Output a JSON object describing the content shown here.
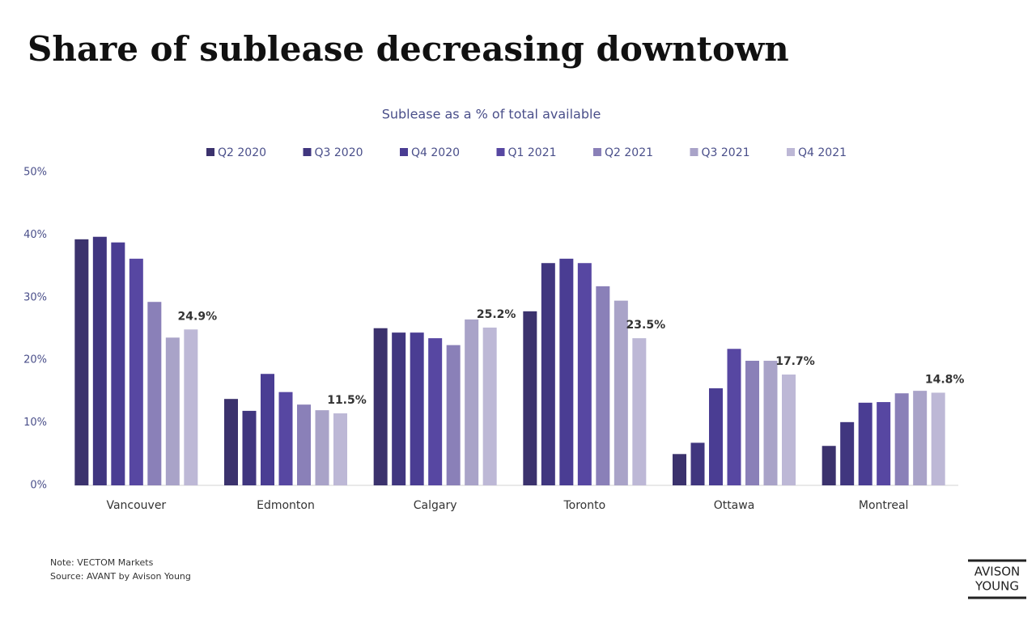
{
  "chart_data": {
    "type": "bar",
    "title": "Share of sublease decreasing downtown",
    "subtitle": "Sublease as a % of total available",
    "categories": [
      "Vancouver",
      "Edmonton",
      "Calgary",
      "Toronto",
      "Ottawa",
      "Montreal"
    ],
    "series": [
      {
        "name": "Q2 2020",
        "color": "#3b326d",
        "values": [
          39.3,
          13.8,
          25.1,
          27.8,
          5.0,
          6.3
        ]
      },
      {
        "name": "Q3 2020",
        "color": "#40367f",
        "values": [
          39.7,
          11.9,
          24.4,
          35.5,
          6.8,
          10.1
        ]
      },
      {
        "name": "Q4 2020",
        "color": "#4a3d93",
        "values": [
          38.8,
          17.8,
          24.4,
          36.2,
          15.5,
          13.2
        ]
      },
      {
        "name": "Q1 2021",
        "color": "#5747a2",
        "values": [
          36.2,
          14.9,
          23.5,
          35.5,
          21.8,
          13.3
        ]
      },
      {
        "name": "Q2 2021",
        "color": "#8a80b8",
        "values": [
          29.3,
          12.9,
          22.4,
          31.8,
          19.9,
          14.7
        ]
      },
      {
        "name": "Q3 2021",
        "color": "#a9a3c8",
        "values": [
          23.6,
          12.0,
          26.5,
          29.5,
          19.9,
          15.1
        ]
      },
      {
        "name": "Q4 2021",
        "color": "#bdb8d6",
        "values": [
          24.9,
          11.5,
          25.2,
          23.5,
          17.7,
          14.8
        ],
        "value_labels": [
          "24.9%",
          "11.5%",
          "25.2%",
          "23.5%",
          "17.7%",
          "14.8%"
        ]
      }
    ],
    "ylim": [
      0,
      50
    ],
    "yticks": [
      {
        "value": 0,
        "label": "0%"
      },
      {
        "value": 10,
        "label": "10%"
      },
      {
        "value": 20,
        "label": "20%"
      },
      {
        "value": 30,
        "label": "30%"
      },
      {
        "value": 40,
        "label": "40%"
      },
      {
        "value": 50,
        "label": "50%"
      }
    ],
    "grid": false,
    "legend": "top",
    "note": "Note: VECTOM Markets",
    "source": "Source: AVANT by Avison Young"
  },
  "logo": {
    "line1": "AVISON",
    "line2": "YOUNG"
  }
}
